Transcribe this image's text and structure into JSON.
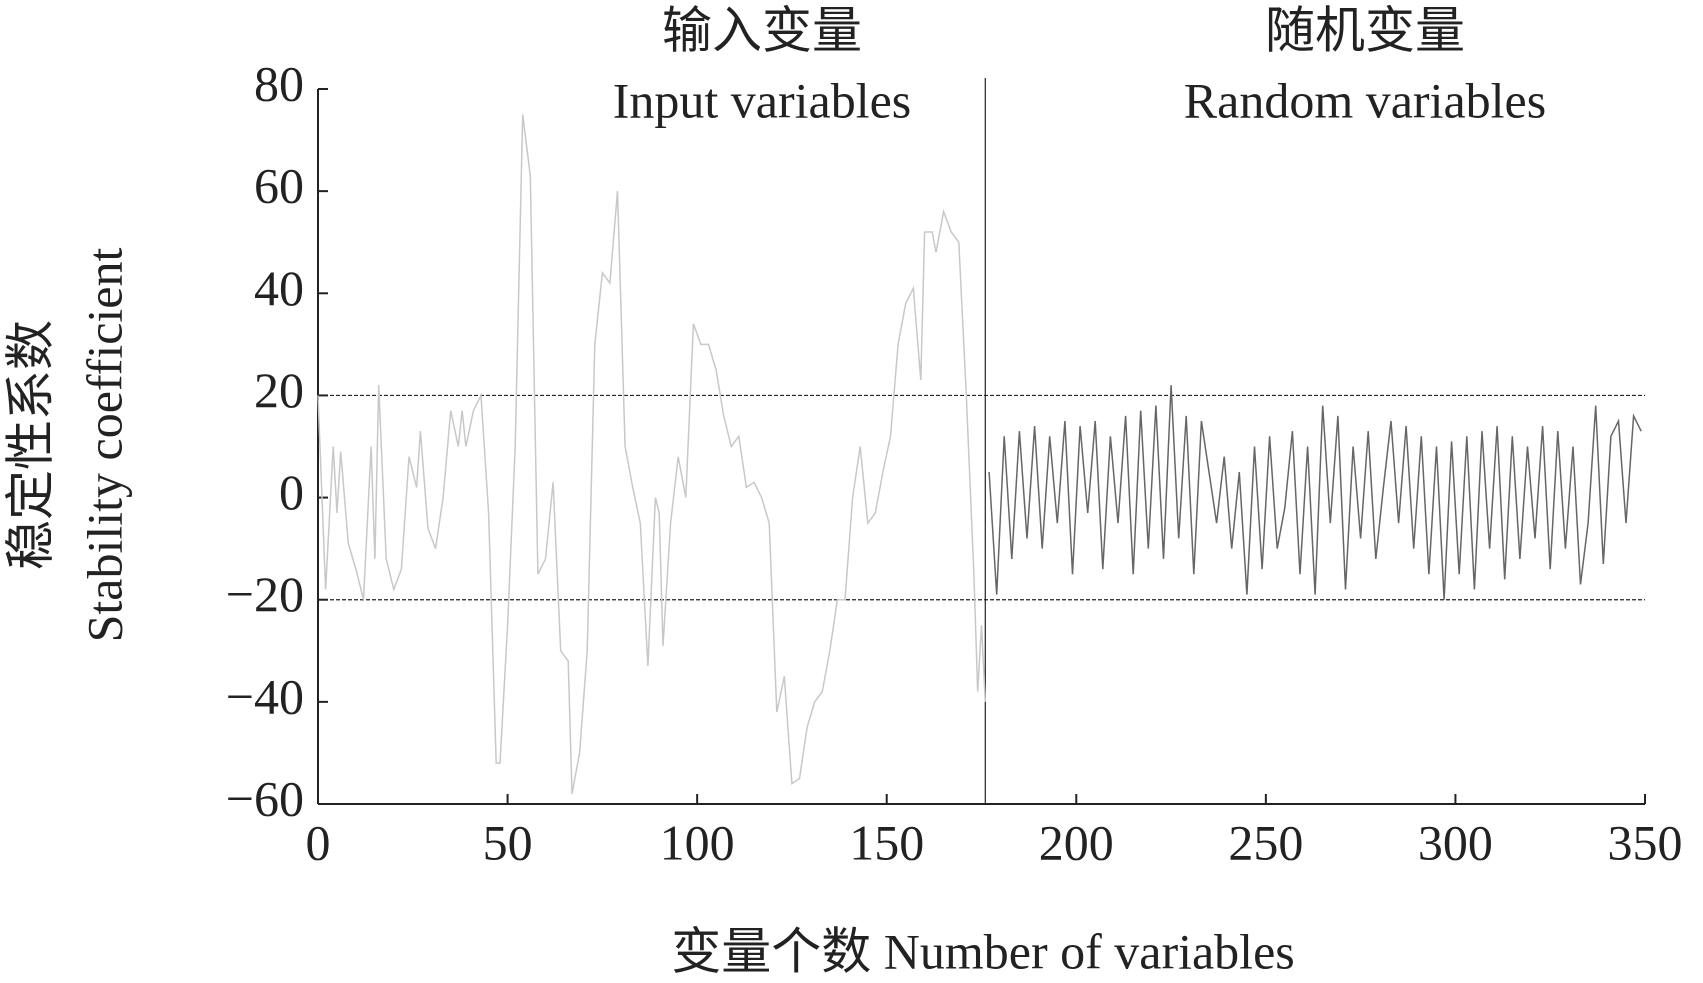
{
  "chart_data": {
    "type": "line",
    "x_label": "变量个数  Number of variables",
    "y_label": [
      "稳定性系数",
      "Stability coefficient"
    ],
    "regions": [
      {
        "label_cn": "输入变量",
        "label_en": "Input variables"
      },
      {
        "label_cn": "随机变量",
        "label_en": "Random variables"
      }
    ],
    "divider_x": 176,
    "reference_lines": [
      20,
      -20
    ],
    "xlim": [
      0,
      350
    ],
    "xticks": [
      0,
      50,
      100,
      150,
      200,
      250,
      300,
      350
    ],
    "ylim": [
      -60,
      80
    ],
    "yticks": [
      {
        "value": -60,
        "label": "−60"
      },
      {
        "value": -40,
        "label": "−40"
      },
      {
        "value": -20,
        "label": "−20"
      },
      0,
      20,
      40,
      60,
      80
    ],
    "series": [
      {
        "color": "#c8c8c8",
        "x": [
          0,
          2,
          4,
          5,
          6,
          8,
          10,
          12,
          14,
          15,
          16,
          18,
          20,
          22,
          24,
          26,
          27,
          29,
          31,
          33,
          35,
          37,
          38,
          39,
          41,
          43,
          45,
          47,
          48,
          50,
          52,
          54,
          56,
          58,
          60,
          62,
          64,
          66,
          67,
          69,
          71,
          73,
          75,
          77,
          79,
          81,
          83,
          85,
          87,
          89,
          90,
          91,
          93,
          95,
          97,
          99,
          101,
          103,
          105,
          107,
          109,
          111,
          113,
          115,
          117,
          119,
          121,
          123,
          125,
          127,
          129,
          131,
          133,
          135,
          137,
          139,
          141,
          143,
          145,
          147,
          149,
          151,
          153,
          155,
          157,
          159,
          160,
          162,
          163,
          165,
          167,
          169,
          171,
          173,
          174,
          175,
          176
        ],
        "values": [
          20,
          -18,
          10,
          -3,
          9,
          -9,
          -14,
          -20,
          10,
          -12,
          22,
          -12,
          -18,
          -14,
          8,
          2,
          13,
          -6,
          -10,
          0,
          17,
          10,
          17,
          10,
          17,
          20,
          -3,
          -52,
          -52,
          -25,
          10,
          75,
          63,
          -15,
          -12,
          3,
          -30,
          -32,
          -58,
          -50,
          -30,
          30,
          44,
          42,
          60,
          10,
          2,
          -5,
          -33,
          0,
          -3,
          -29,
          -5,
          8,
          0,
          34,
          30,
          30,
          25,
          16,
          10,
          12,
          2,
          3,
          0,
          -5,
          -42,
          -35,
          -56,
          -55,
          -45,
          -40,
          -38,
          -30,
          -20,
          -20,
          0,
          10,
          -5,
          -3,
          5,
          12,
          30,
          38,
          41,
          23,
          52,
          52,
          48,
          56,
          52,
          50,
          20,
          -15,
          -38,
          -25,
          -40
        ]
      },
      {
        "color": "#666666",
        "x": [
          177,
          179,
          181,
          183,
          185,
          187,
          189,
          191,
          193,
          195,
          197,
          199,
          201,
          203,
          205,
          207,
          209,
          211,
          213,
          215,
          217,
          219,
          221,
          223,
          225,
          227,
          229,
          231,
          233,
          235,
          237,
          239,
          241,
          243,
          245,
          247,
          249,
          251,
          253,
          255,
          257,
          259,
          261,
          263,
          265,
          267,
          269,
          271,
          273,
          275,
          277,
          279,
          281,
          283,
          285,
          287,
          289,
          291,
          293,
          295,
          297,
          299,
          301,
          303,
          305,
          307,
          309,
          311,
          313,
          315,
          317,
          319,
          321,
          323,
          325,
          327,
          329,
          331,
          333,
          335,
          337,
          339,
          341,
          343,
          345,
          347,
          349
        ],
        "values": [
          5,
          -19,
          12,
          -12,
          13,
          -8,
          14,
          -10,
          12,
          -5,
          15,
          -15,
          14,
          -3,
          15,
          -14,
          12,
          -5,
          16,
          -15,
          17,
          -10,
          18,
          -12,
          22,
          -8,
          16,
          -15,
          15,
          5,
          -5,
          8,
          -10,
          5,
          -19,
          10,
          -14,
          12,
          -10,
          -2,
          13,
          -15,
          10,
          -19,
          18,
          -5,
          16,
          -18,
          10,
          -8,
          13,
          -12,
          2,
          15,
          -5,
          14,
          -10,
          12,
          -15,
          10,
          -20,
          11,
          -15,
          12,
          -18,
          13,
          -10,
          14,
          -16,
          12,
          -12,
          10,
          -8,
          14,
          -14,
          13,
          -10,
          10,
          -17,
          -5,
          18,
          -13,
          12,
          15,
          -5,
          16,
          13
        ]
      }
    ]
  }
}
